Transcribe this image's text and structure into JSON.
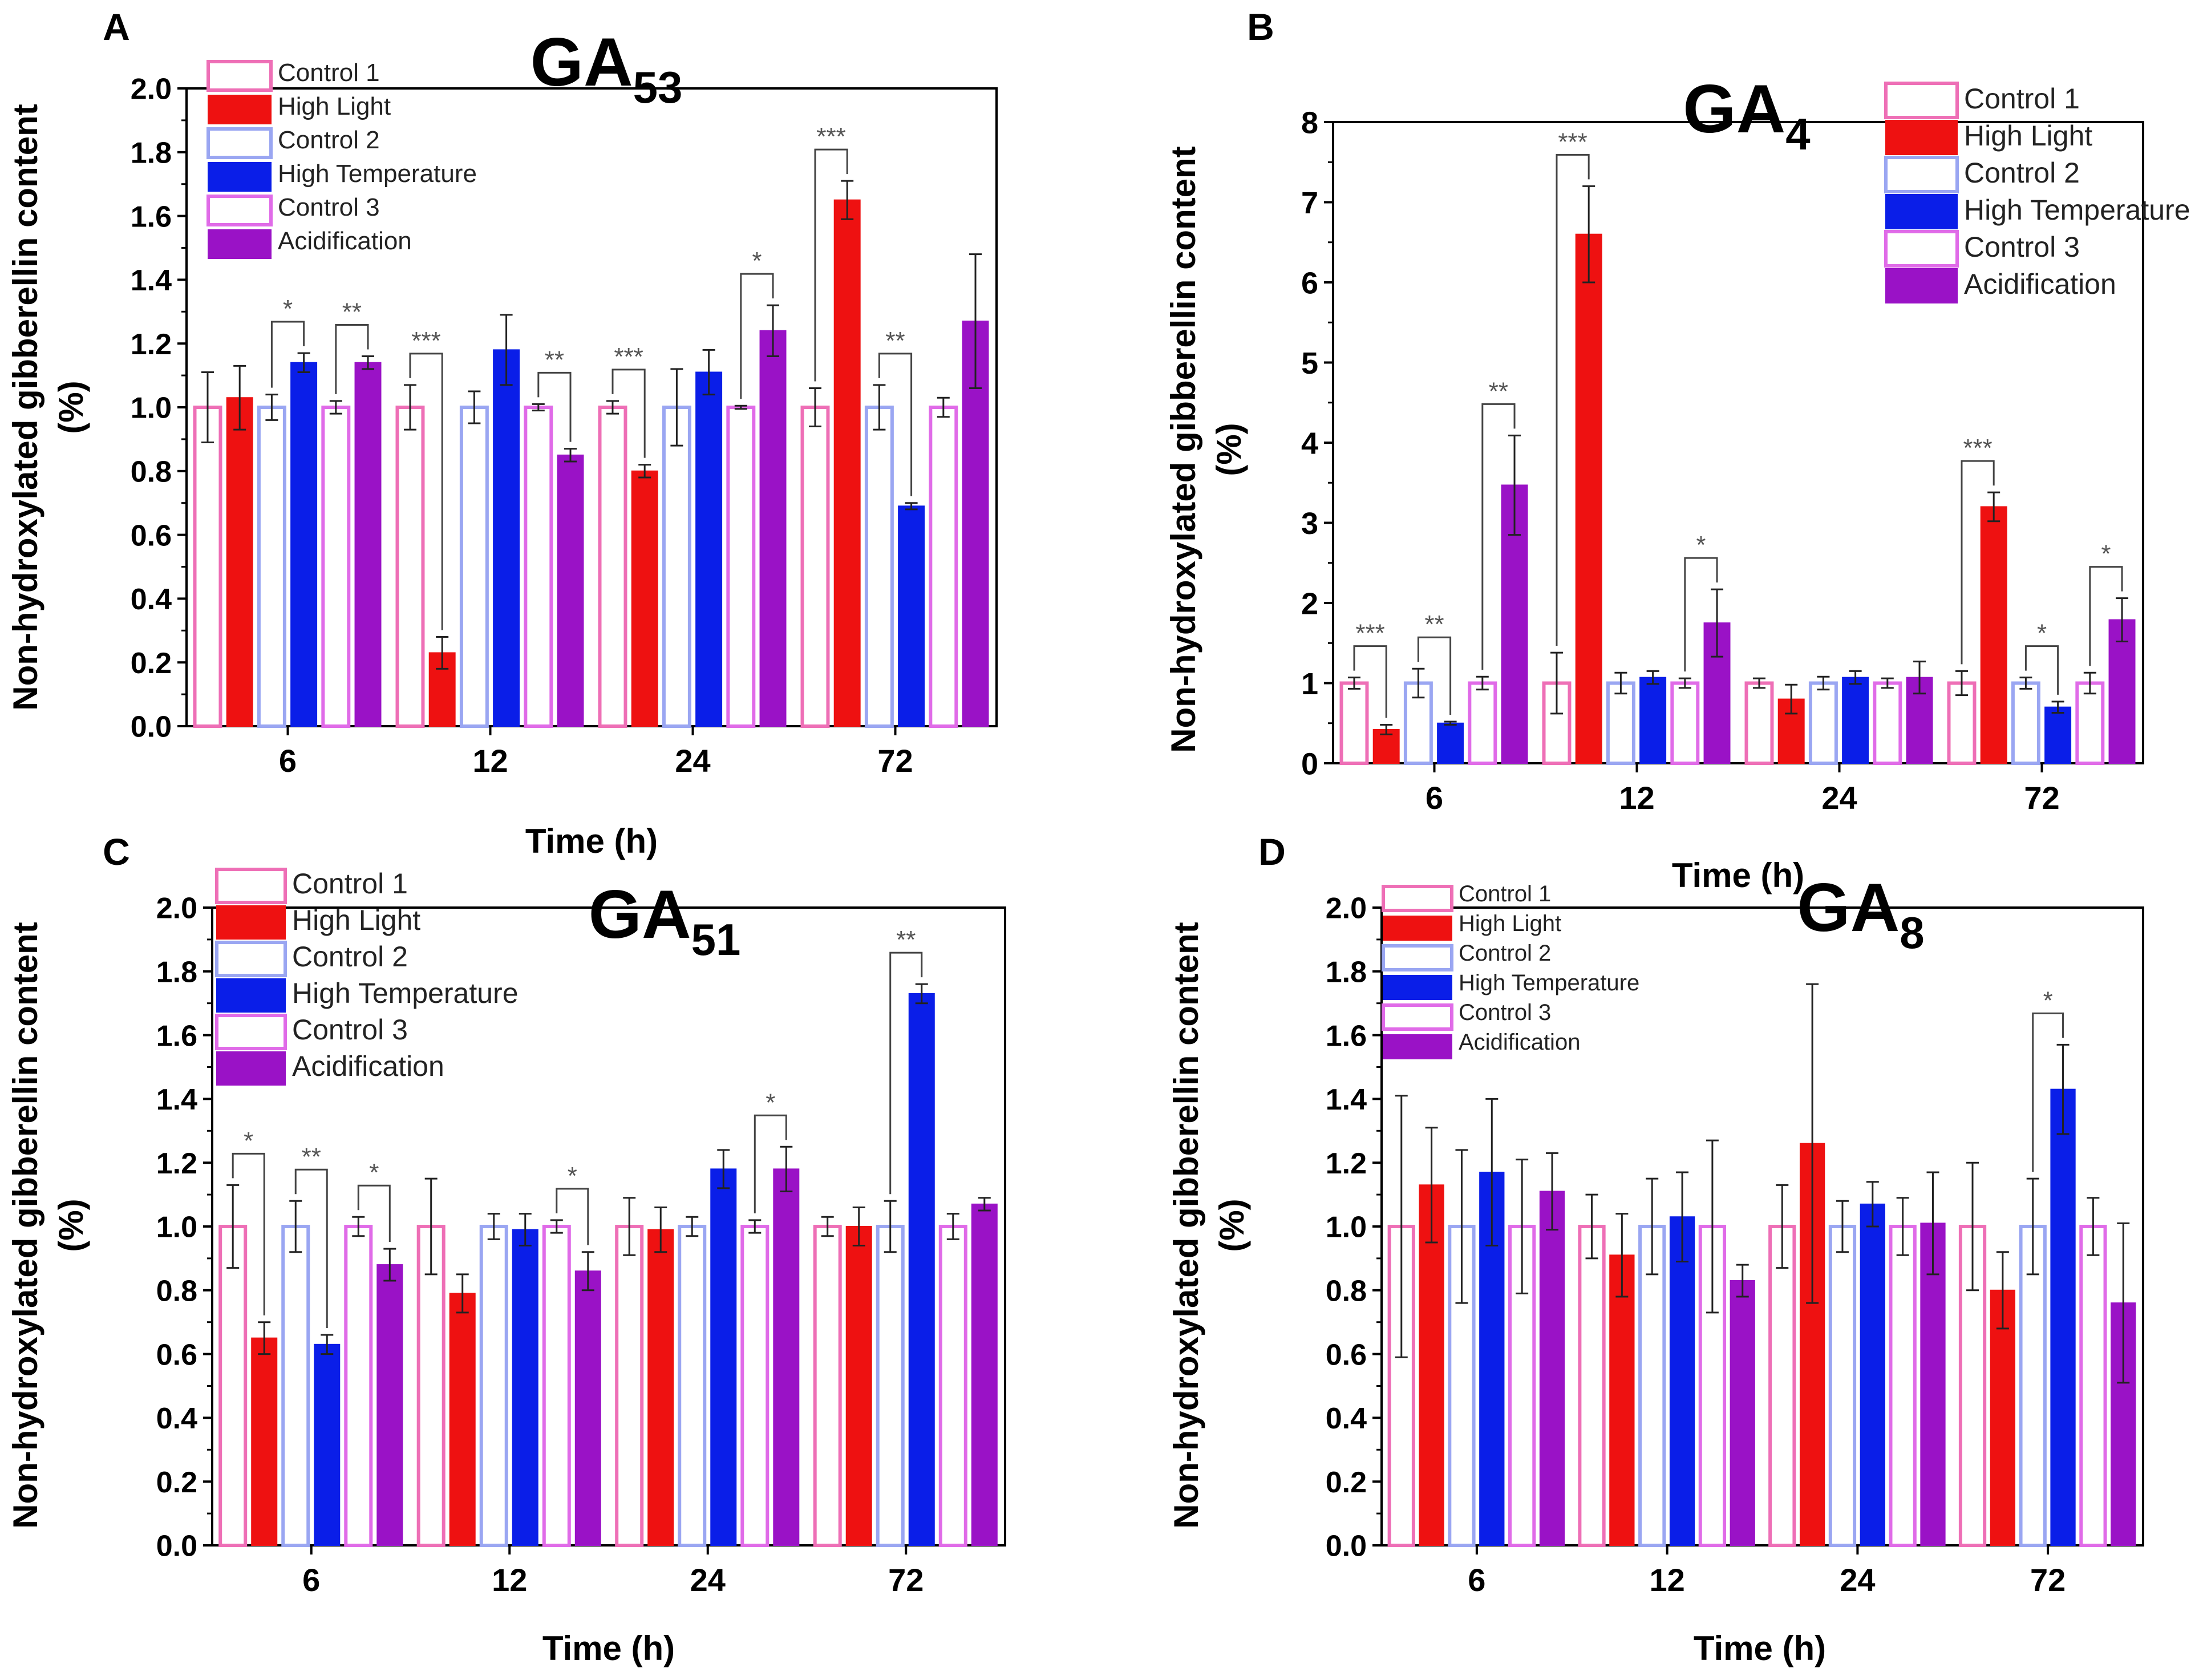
{
  "figure": {
    "ylabel_line1": "Non-hydroxylated gibberellin content",
    "ylabel_line2": "(%)",
    "xlabel": "Time (h)",
    "categories": [
      "6",
      "12",
      "24",
      "72"
    ],
    "legend": [
      {
        "name": "Control 1",
        "style": "open",
        "color": "#ee6fb6"
      },
      {
        "name": "High Light",
        "style": "filled",
        "color": "#ee1111"
      },
      {
        "name": "Control 2",
        "style": "open",
        "color": "#9aa6f2"
      },
      {
        "name": "High Temperature",
        "style": "filled",
        "color": "#0a1ee8"
      },
      {
        "name": "Control 3",
        "style": "open",
        "color": "#e06be8"
      },
      {
        "name": "Acidification",
        "style": "filled",
        "color": "#9a12c6"
      }
    ]
  },
  "chart_data": [
    {
      "panel_letter": "A",
      "type": "bar",
      "title": "GA",
      "title_sub": "53",
      "categories": [
        "6",
        "12",
        "24",
        "72"
      ],
      "xlabel": "Time (h)",
      "ylabel": "Non-hydroxylated gibberellin content (%)",
      "ylim": [
        0,
        2.0
      ],
      "ticks": [
        "0.0",
        "0.2",
        "0.4",
        "0.6",
        "0.8",
        "1.0",
        "1.2",
        "1.4",
        "1.6",
        "1.8",
        "2.0"
      ],
      "legend_position": "top-left",
      "series": [
        {
          "name": "Control 1",
          "values": [
            1.0,
            1.0,
            1.0,
            1.0
          ],
          "errors": [
            0.11,
            0.07,
            0.02,
            0.06
          ]
        },
        {
          "name": "High Light",
          "values": [
            1.03,
            0.23,
            0.8,
            1.65
          ],
          "errors": [
            0.1,
            0.05,
            0.02,
            0.06
          ]
        },
        {
          "name": "Control 2",
          "values": [
            1.0,
            1.0,
            1.0,
            1.0
          ],
          "errors": [
            0.04,
            0.05,
            0.12,
            0.07
          ]
        },
        {
          "name": "High Temperature",
          "values": [
            1.14,
            1.18,
            1.11,
            0.69
          ],
          "errors": [
            0.03,
            0.11,
            0.07,
            0.01
          ]
        },
        {
          "name": "Control 3",
          "values": [
            1.0,
            1.0,
            1.0,
            1.0
          ],
          "errors": [
            0.02,
            0.01,
            0.005,
            0.03
          ]
        },
        {
          "name": "Acidification",
          "values": [
            1.14,
            0.85,
            1.24,
            1.27
          ],
          "errors": [
            0.02,
            0.02,
            0.08,
            0.21
          ]
        }
      ],
      "significance": [
        {
          "category": "6",
          "label": "*",
          "from": "Control 2",
          "to": "High Temperature"
        },
        {
          "category": "6",
          "label": "**",
          "from": "Control 3",
          "to": "Acidification"
        },
        {
          "category": "12",
          "label": "***",
          "from": "Control 1",
          "to": "High Light"
        },
        {
          "category": "12",
          "label": "**",
          "from": "Control 3",
          "to": "Acidification"
        },
        {
          "category": "24",
          "label": "***",
          "from": "Control 1",
          "to": "High Light"
        },
        {
          "category": "24",
          "label": "*",
          "from": "Control 3",
          "to": "Acidification"
        },
        {
          "category": "72",
          "label": "***",
          "from": "Control 1",
          "to": "High Light"
        },
        {
          "category": "72",
          "label": "**",
          "from": "Control 2",
          "to": "High Temperature"
        }
      ]
    },
    {
      "panel_letter": "B",
      "type": "bar",
      "title": "GA",
      "title_sub": "4",
      "categories": [
        "6",
        "12",
        "24",
        "72"
      ],
      "xlabel": "Time (h)",
      "ylabel": "Non-hydroxylated gibberellin content (%)",
      "ylim": [
        0,
        8
      ],
      "ticks": [
        "0",
        "1",
        "2",
        "3",
        "4",
        "5",
        "6",
        "7",
        "8"
      ],
      "legend_position": "top-right",
      "series": [
        {
          "name": "Control 1",
          "values": [
            1.0,
            1.0,
            1.0,
            1.0
          ],
          "errors": [
            0.07,
            0.38,
            0.06,
            0.15
          ]
        },
        {
          "name": "High Light",
          "values": [
            0.42,
            6.6,
            0.8,
            3.2
          ],
          "errors": [
            0.06,
            0.6,
            0.18,
            0.18
          ]
        },
        {
          "name": "Control 2",
          "values": [
            1.0,
            1.0,
            1.0,
            1.0
          ],
          "errors": [
            0.18,
            0.13,
            0.08,
            0.07
          ]
        },
        {
          "name": "High Temperature",
          "values": [
            0.5,
            1.07,
            1.07,
            0.7
          ],
          "errors": [
            0.02,
            0.08,
            0.08,
            0.07
          ]
        },
        {
          "name": "Control 3",
          "values": [
            1.0,
            1.0,
            1.0,
            1.0
          ],
          "errors": [
            0.08,
            0.06,
            0.06,
            0.13
          ]
        },
        {
          "name": "Acidification",
          "values": [
            3.47,
            1.75,
            1.07,
            1.79
          ],
          "errors": [
            0.62,
            0.42,
            0.2,
            0.27
          ]
        }
      ],
      "significance": [
        {
          "category": "6",
          "label": "***",
          "from": "Control 1",
          "to": "High Light"
        },
        {
          "category": "6",
          "label": "**",
          "from": "Control 2",
          "to": "High Temperature"
        },
        {
          "category": "6",
          "label": "**",
          "from": "Control 3",
          "to": "Acidification"
        },
        {
          "category": "12",
          "label": "***",
          "from": "Control 1",
          "to": "High Light"
        },
        {
          "category": "12",
          "label": "*",
          "from": "Control 3",
          "to": "Acidification"
        },
        {
          "category": "72",
          "label": "***",
          "from": "Control 1",
          "to": "High Light"
        },
        {
          "category": "72",
          "label": "*",
          "from": "Control 2",
          "to": "High Temperature"
        },
        {
          "category": "72",
          "label": "*",
          "from": "Control 3",
          "to": "Acidification"
        }
      ]
    },
    {
      "panel_letter": "C",
      "type": "bar",
      "title": "GA",
      "title_sub": "51",
      "categories": [
        "6",
        "12",
        "24",
        "72"
      ],
      "xlabel": "Time (h)",
      "ylabel": "Non-hydroxylated gibberellin content (%)",
      "ylim": [
        0,
        2.0
      ],
      "ticks": [
        "0.0",
        "0.2",
        "0.4",
        "0.6",
        "0.8",
        "1.0",
        "1.2",
        "1.4",
        "1.6",
        "1.8",
        "2.0"
      ],
      "legend_position": "top-left",
      "series": [
        {
          "name": "Control 1",
          "values": [
            1.0,
            1.0,
            1.0,
            1.0
          ],
          "errors": [
            0.13,
            0.15,
            0.09,
            0.03
          ]
        },
        {
          "name": "High Light",
          "values": [
            0.65,
            0.79,
            0.99,
            1.0
          ],
          "errors": [
            0.05,
            0.06,
            0.07,
            0.06
          ]
        },
        {
          "name": "Control 2",
          "values": [
            1.0,
            1.0,
            1.0,
            1.0
          ],
          "errors": [
            0.08,
            0.04,
            0.03,
            0.08
          ]
        },
        {
          "name": "High Temperature",
          "values": [
            0.63,
            0.99,
            1.18,
            1.73
          ],
          "errors": [
            0.03,
            0.05,
            0.06,
            0.03
          ]
        },
        {
          "name": "Control 3",
          "values": [
            1.0,
            1.0,
            1.0,
            1.0
          ],
          "errors": [
            0.03,
            0.02,
            0.02,
            0.04
          ]
        },
        {
          "name": "Acidification",
          "values": [
            0.88,
            0.86,
            1.18,
            1.07
          ],
          "errors": [
            0.05,
            0.06,
            0.07,
            0.02
          ]
        }
      ],
      "significance": [
        {
          "category": "6",
          "label": "*",
          "from": "Control 1",
          "to": "High Light"
        },
        {
          "category": "6",
          "label": "**",
          "from": "Control 2",
          "to": "High Temperature"
        },
        {
          "category": "6",
          "label": "*",
          "from": "Control 3",
          "to": "Acidification"
        },
        {
          "category": "12",
          "label": "*",
          "from": "Control 3",
          "to": "Acidification"
        },
        {
          "category": "24",
          "label": "*",
          "from": "Control 3",
          "to": "Acidification"
        },
        {
          "category": "72",
          "label": "**",
          "from": "Control 2",
          "to": "High Temperature"
        }
      ]
    },
    {
      "panel_letter": "D",
      "type": "bar",
      "title": "GA",
      "title_sub": "8",
      "categories": [
        "6",
        "12",
        "24",
        "72"
      ],
      "xlabel": "Time (h)",
      "ylabel": "Non-hydroxylated gibberellin content (%)",
      "ylim": [
        0,
        2.0
      ],
      "ticks": [
        "0.0",
        "0.2",
        "0.4",
        "0.6",
        "0.8",
        "1.0",
        "1.2",
        "1.4",
        "1.6",
        "1.8",
        "2.0"
      ],
      "legend_position": "top-left",
      "series": [
        {
          "name": "Control 1",
          "values": [
            1.0,
            1.0,
            1.0,
            1.0
          ],
          "errors": [
            0.41,
            0.1,
            0.13,
            0.2
          ]
        },
        {
          "name": "High Light",
          "values": [
            1.13,
            0.91,
            1.26,
            0.8
          ],
          "errors": [
            0.18,
            0.13,
            0.5,
            0.12
          ]
        },
        {
          "name": "Control 2",
          "values": [
            1.0,
            1.0,
            1.0,
            1.0
          ],
          "errors": [
            0.24,
            0.15,
            0.08,
            0.15
          ]
        },
        {
          "name": "High Temperature",
          "values": [
            1.17,
            1.03,
            1.07,
            1.43
          ],
          "errors": [
            0.23,
            0.14,
            0.07,
            0.14
          ]
        },
        {
          "name": "Control 3",
          "values": [
            1.0,
            1.0,
            1.0,
            1.0
          ],
          "errors": [
            0.21,
            0.27,
            0.09,
            0.09
          ]
        },
        {
          "name": "Acidification",
          "values": [
            1.11,
            0.83,
            1.01,
            0.76
          ],
          "errors": [
            0.12,
            0.05,
            0.16,
            0.25
          ]
        }
      ],
      "significance": [
        {
          "category": "72",
          "label": "*",
          "from": "Control 2",
          "to": "High Temperature"
        }
      ]
    }
  ]
}
